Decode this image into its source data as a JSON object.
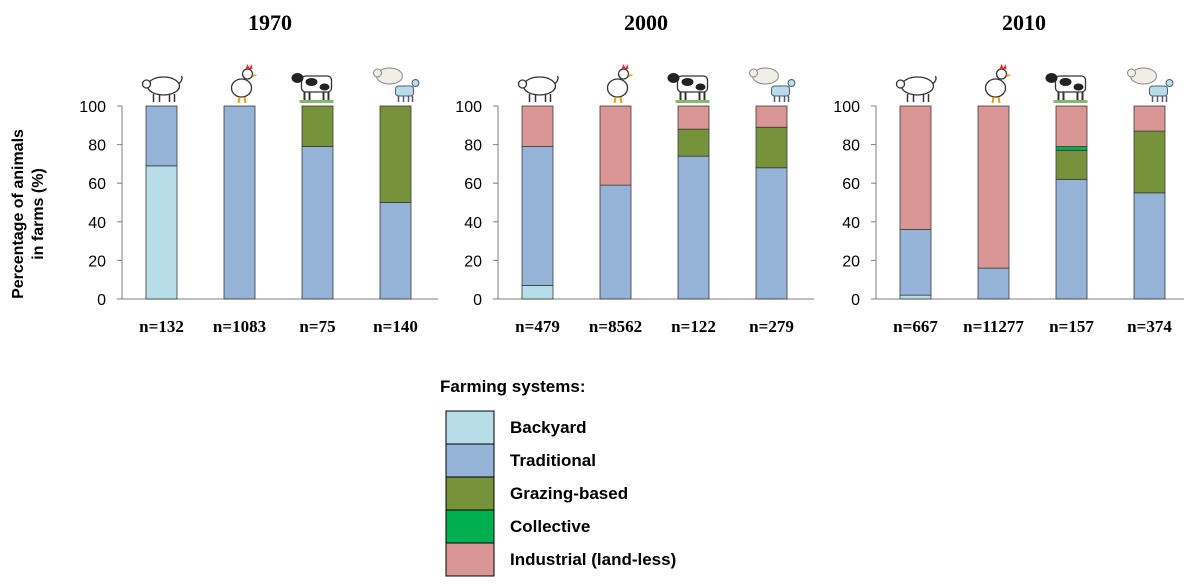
{
  "chart_data": {
    "type": "bar",
    "stacked": true,
    "ylabel_line1": "Percentage of animals",
    "ylabel_line2": "in farms (%)",
    "ylim": [
      0,
      100
    ],
    "yticks": [
      0,
      20,
      40,
      60,
      80,
      100
    ],
    "animals": [
      "pig-icon",
      "chicken-icon",
      "cow-icon",
      "sheep-goat-icon"
    ],
    "legend_title": "Farming systems:",
    "systems": [
      {
        "key": "backyard",
        "name": "Backyard",
        "color": "#b7dde8"
      },
      {
        "key": "traditional",
        "name": "Traditional",
        "color": "#95b3d7"
      },
      {
        "key": "grazing",
        "name": "Grazing-based",
        "color": "#76933c"
      },
      {
        "key": "collective",
        "name": "Collective",
        "color": "#00b050"
      },
      {
        "key": "industrial",
        "name": "Industrial (land-less)",
        "color": "#da9694"
      }
    ],
    "panels": [
      {
        "title": "1970",
        "bars": [
          {
            "n": "n=132",
            "segments": {
              "backyard": 69,
              "traditional": 31,
              "grazing": 0,
              "collective": 0,
              "industrial": 0
            }
          },
          {
            "n": "n=1083",
            "segments": {
              "backyard": 0,
              "traditional": 100,
              "grazing": 0,
              "collective": 0,
              "industrial": 0
            }
          },
          {
            "n": "n=75",
            "segments": {
              "backyard": 0,
              "traditional": 79,
              "grazing": 21,
              "collective": 0,
              "industrial": 0
            }
          },
          {
            "n": "n=140",
            "segments": {
              "backyard": 0,
              "traditional": 50,
              "grazing": 50,
              "collective": 0,
              "industrial": 0
            }
          }
        ]
      },
      {
        "title": "2000",
        "bars": [
          {
            "n": "n=479",
            "segments": {
              "backyard": 7,
              "traditional": 72,
              "grazing": 0,
              "collective": 0,
              "industrial": 21
            }
          },
          {
            "n": "n=8562",
            "segments": {
              "backyard": 0,
              "traditional": 59,
              "grazing": 0,
              "collective": 0,
              "industrial": 41
            }
          },
          {
            "n": "n=122",
            "segments": {
              "backyard": 0,
              "traditional": 74,
              "grazing": 14,
              "collective": 0,
              "industrial": 12
            }
          },
          {
            "n": "n=279",
            "segments": {
              "backyard": 0,
              "traditional": 68,
              "grazing": 21,
              "collective": 0,
              "industrial": 11
            }
          }
        ]
      },
      {
        "title": "2010",
        "bars": [
          {
            "n": "n=667",
            "segments": {
              "backyard": 2,
              "traditional": 34,
              "grazing": 0,
              "collective": 0,
              "industrial": 64
            }
          },
          {
            "n": "n=11277",
            "segments": {
              "backyard": 0,
              "traditional": 16,
              "grazing": 0,
              "collective": 0,
              "industrial": 84
            }
          },
          {
            "n": "n=157",
            "segments": {
              "backyard": 0,
              "traditional": 62,
              "grazing": 15,
              "collective": 2,
              "industrial": 21
            }
          },
          {
            "n": "n=374",
            "segments": {
              "backyard": 0,
              "traditional": 55,
              "grazing": 32,
              "collective": 0,
              "industrial": 13
            }
          }
        ]
      }
    ]
  }
}
